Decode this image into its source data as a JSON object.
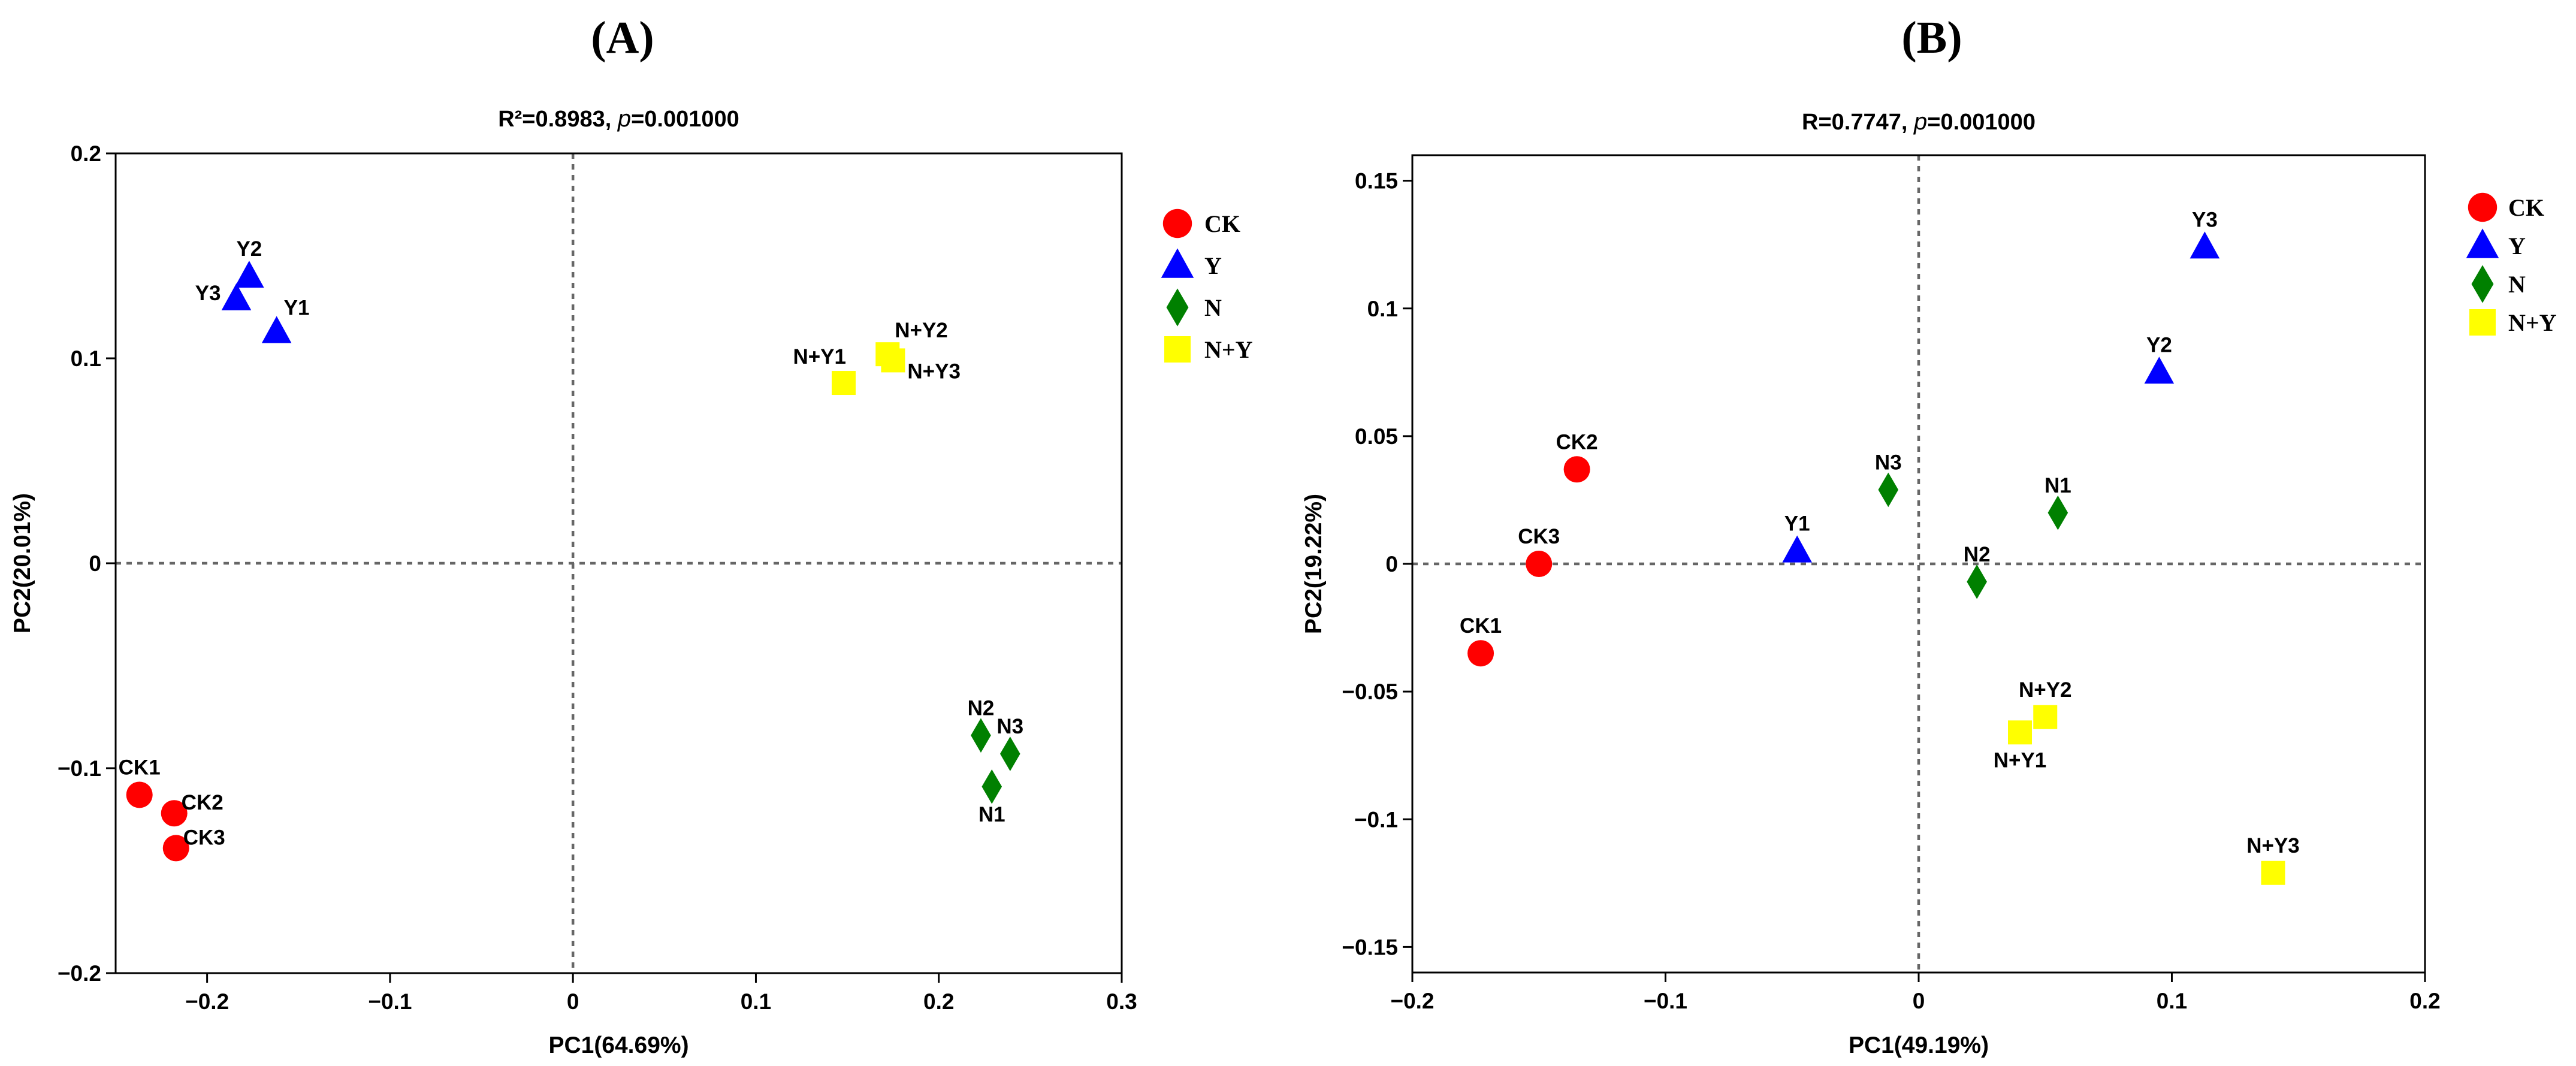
{
  "chart_data": [
    {
      "type": "scatter",
      "panel_label": "(A)",
      "subtitle": "R²=0.8983, p=0.001000",
      "subtitle_parts": [
        "R²=0.8983, ",
        "p",
        "=0.001000"
      ],
      "xlabel": "PC1(64.69%)",
      "ylabel": "PC2(20.01%)",
      "xlim": [
        -0.25,
        0.3
      ],
      "ylim": [
        -0.2,
        0.2
      ],
      "xticks": [
        -0.2,
        -0.1,
        0,
        0.1,
        0.2,
        0.3
      ],
      "xtick_labels": [
        "−0.2",
        "−0.1",
        "0",
        "0.1",
        "0.2",
        "0.3"
      ],
      "yticks": [
        -0.2,
        -0.1,
        0,
        0.1,
        0.2
      ],
      "ytick_labels": [
        "−0.2",
        "−0.1",
        "0",
        "0.1",
        "0.2"
      ],
      "zero_lines": true,
      "legend_position": "right",
      "series": [
        {
          "name": "CK",
          "marker": "circle",
          "color": "#ff0000",
          "points": [
            {
              "label": "CK1",
              "x": -0.237,
              "y": -0.113,
              "label_pos": "above"
            },
            {
              "label": "CK2",
              "x": -0.218,
              "y": -0.122,
              "label_pos": "right"
            },
            {
              "label": "CK3",
              "x": -0.217,
              "y": -0.139,
              "label_pos": "right"
            }
          ]
        },
        {
          "name": "Y",
          "marker": "triangle",
          "color": "#0000ff",
          "points": [
            {
              "label": "Y2",
              "x": -0.177,
              "y": 0.14,
              "label_pos": "above"
            },
            {
              "label": "Y3",
              "x": -0.184,
              "y": 0.129,
              "label_pos": "left"
            },
            {
              "label": "Y1",
              "x": -0.162,
              "y": 0.113,
              "label_pos": "upper-right"
            }
          ]
        },
        {
          "name": "N",
          "marker": "diamond",
          "color": "#008000",
          "points": [
            {
              "label": "N2",
              "x": 0.223,
              "y": -0.084,
              "label_pos": "above"
            },
            {
              "label": "N3",
              "x": 0.239,
              "y": -0.093,
              "label_pos": "above"
            },
            {
              "label": "N1",
              "x": 0.229,
              "y": -0.109,
              "label_pos": "below"
            }
          ]
        },
        {
          "name": "N+Y",
          "marker": "square",
          "color": "#ffff00",
          "points": [
            {
              "label": "N+Y1",
              "x": 0.148,
              "y": 0.088,
              "label_pos": "upper-left"
            },
            {
              "label": "N+Y2",
              "x": 0.172,
              "y": 0.102,
              "label_pos": "upper-right"
            },
            {
              "label": "N+Y3",
              "x": 0.175,
              "y": 0.099,
              "label_pos": "lower-right"
            }
          ]
        }
      ]
    },
    {
      "type": "scatter",
      "panel_label": "(B)",
      "subtitle": "R=0.7747, p=0.001000",
      "subtitle_parts": [
        "R=0.7747, ",
        "p",
        "=0.001000"
      ],
      "xlabel": "PC1(49.19%)",
      "ylabel": "PC2(19.22%)",
      "xlim": [
        -0.2,
        0.2
      ],
      "ylim": [
        -0.16,
        0.16
      ],
      "xticks": [
        -0.2,
        -0.1,
        0,
        0.1,
        0.2
      ],
      "xtick_labels": [
        "−0.2",
        "−0.1",
        "0",
        "0.1",
        "0.2"
      ],
      "yticks": [
        -0.15,
        -0.1,
        -0.05,
        0,
        0.05,
        0.1,
        0.15
      ],
      "ytick_labels": [
        "−0.15",
        "−0.1",
        "−0.05",
        "0",
        "0.05",
        "0.1",
        "0.15"
      ],
      "zero_lines": true,
      "legend_position": "right",
      "series": [
        {
          "name": "CK",
          "marker": "circle",
          "color": "#ff0000",
          "points": [
            {
              "label": "CK2",
              "x": -0.135,
              "y": 0.037,
              "label_pos": "above"
            },
            {
              "label": "CK3",
              "x": -0.15,
              "y": 0.0,
              "label_pos": "above"
            },
            {
              "label": "CK1",
              "x": -0.173,
              "y": -0.035,
              "label_pos": "above"
            }
          ]
        },
        {
          "name": "Y",
          "marker": "triangle",
          "color": "#0000ff",
          "points": [
            {
              "label": "Y3",
              "x": 0.113,
              "y": 0.124,
              "label_pos": "above"
            },
            {
              "label": "Y2",
              "x": 0.095,
              "y": 0.075,
              "label_pos": "above"
            },
            {
              "label": "Y1",
              "x": -0.048,
              "y": 0.005,
              "label_pos": "above"
            }
          ]
        },
        {
          "name": "N",
          "marker": "diamond",
          "color": "#008000",
          "points": [
            {
              "label": "N3",
              "x": -0.012,
              "y": 0.029,
              "label_pos": "above"
            },
            {
              "label": "N1",
              "x": 0.055,
              "y": 0.02,
              "label_pos": "above"
            },
            {
              "label": "N2",
              "x": 0.023,
              "y": -0.007,
              "label_pos": "above"
            }
          ]
        },
        {
          "name": "N+Y",
          "marker": "square",
          "color": "#ffff00",
          "points": [
            {
              "label": "N+Y2",
              "x": 0.05,
              "y": -0.06,
              "label_pos": "above"
            },
            {
              "label": "N+Y1",
              "x": 0.04,
              "y": -0.066,
              "label_pos": "below"
            },
            {
              "label": "N+Y3",
              "x": 0.14,
              "y": -0.121,
              "label_pos": "above"
            }
          ]
        }
      ]
    }
  ]
}
